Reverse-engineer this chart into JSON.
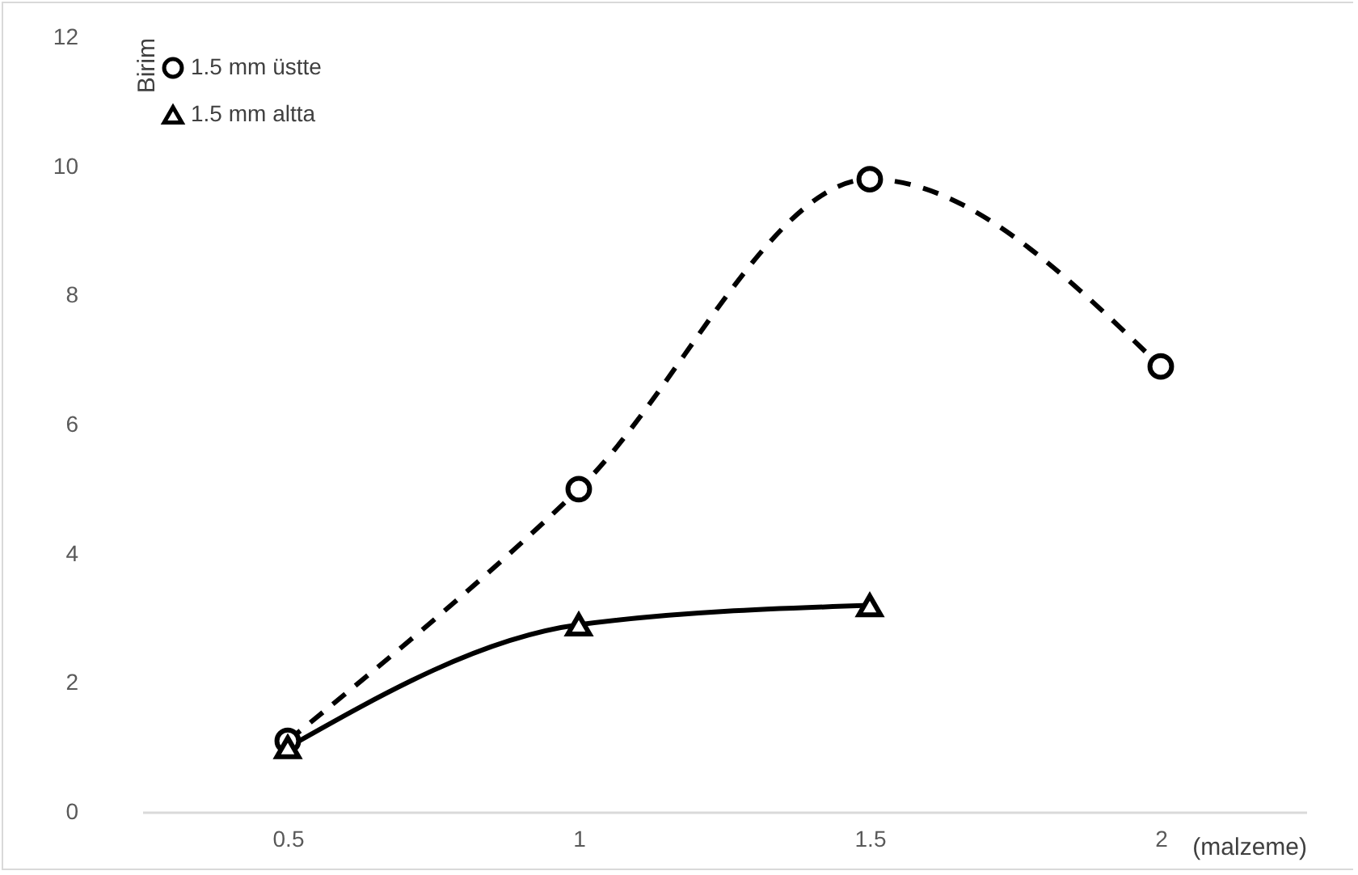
{
  "chart_data": {
    "type": "line",
    "xlabel": "(malzeme)",
    "ylabel": "Birim",
    "categories": [
      "0.5",
      "1",
      "1.5",
      "2"
    ],
    "series": [
      {
        "name": "1.5 mm üstte",
        "color": "#000000",
        "values": [
          1.1,
          5.0,
          9.8,
          6.9
        ],
        "marker": "circle",
        "line_style": "dashed"
      },
      {
        "name": "1.5 mm altta",
        "color": "#000000",
        "values": [
          1.0,
          2.9,
          3.2,
          null
        ],
        "marker": "triangle",
        "line_style": "solid"
      }
    ],
    "ylim": [
      0,
      12
    ],
    "yticks": [
      0,
      2,
      4,
      6,
      8,
      10,
      12
    ],
    "grid": false,
    "legend": "top left"
  }
}
